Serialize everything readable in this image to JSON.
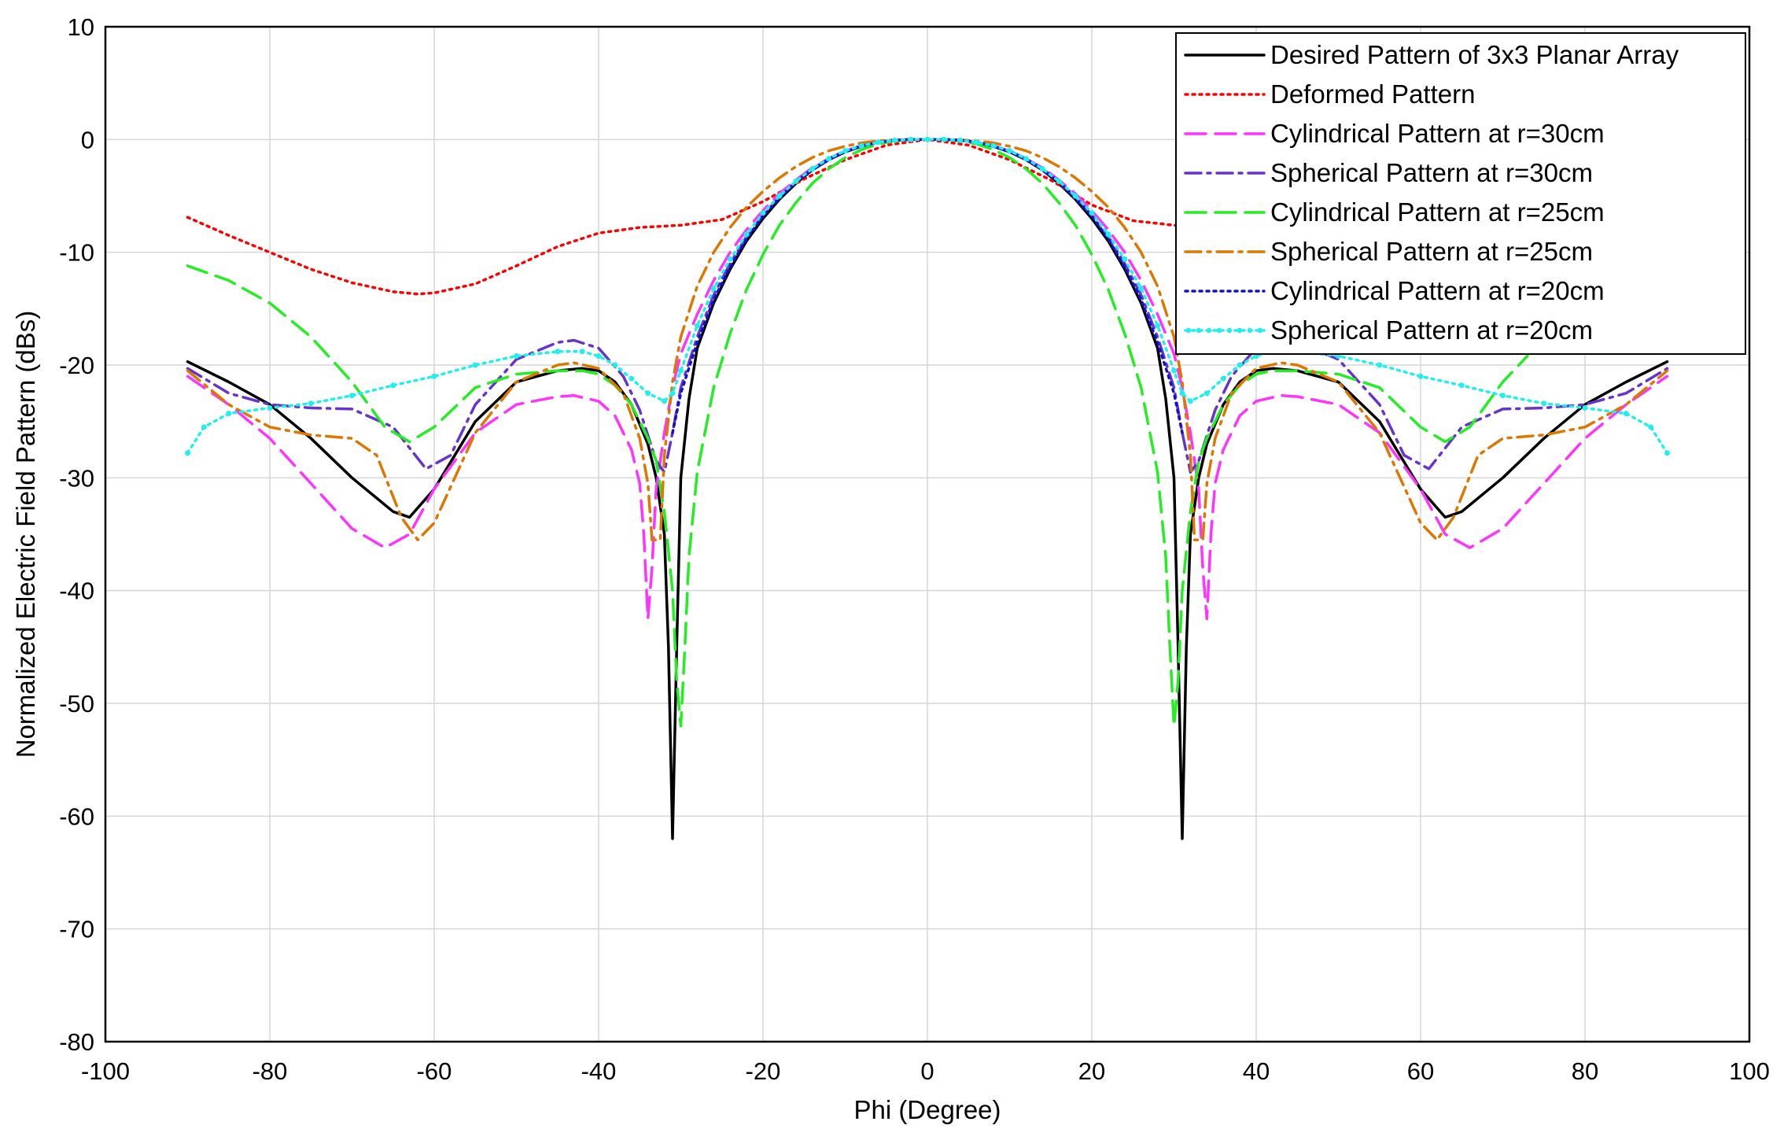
{
  "chart_data": {
    "type": "line",
    "title": "",
    "xlabel": "Phi (Degree)",
    "ylabel": "Normalized Electric Field Pattern (dBs)",
    "xlim": [
      -100,
      100
    ],
    "ylim": [
      -80,
      10
    ],
    "xticks": [
      -100,
      -80,
      -60,
      -40,
      -20,
      0,
      20,
      40,
      60,
      80,
      100
    ],
    "yticks": [
      10,
      0,
      -10,
      -20,
      -30,
      -40,
      -50,
      -60,
      -70,
      -80
    ],
    "grid": true,
    "legend_position": "top-right",
    "series": [
      {
        "name": "Desired Pattern of 3x3 Planar Array",
        "color": "#000000",
        "style": "solid",
        "x": [
          -90,
          -85,
          -80,
          -75,
          -70,
          -65,
          -63,
          -60,
          -55,
          -50,
          -45,
          -42,
          -40,
          -38,
          -36,
          -34,
          -33,
          -32,
          -31.5,
          -31,
          -30.5,
          -30,
          -29,
          -28,
          -26,
          -24,
          -22,
          -20,
          -18,
          -16,
          -14,
          -12,
          -10,
          -8,
          -6,
          -4,
          -2,
          0,
          2,
          4,
          6,
          8,
          10,
          12,
          14,
          16,
          18,
          20,
          22,
          24,
          26,
          28,
          29,
          30,
          30.5,
          31,
          31.5,
          32,
          33,
          34,
          36,
          38,
          40,
          42,
          45,
          50,
          55,
          60,
          63,
          65,
          70,
          75,
          80,
          85,
          90
        ],
        "y": [
          -19.7,
          -21.5,
          -23.5,
          -26.5,
          -30.0,
          -33.0,
          -33.5,
          -31.0,
          -25.0,
          -21.5,
          -20.5,
          -20.3,
          -20.5,
          -21.5,
          -23.5,
          -27.0,
          -30.0,
          -35.0,
          -45.0,
          -62.0,
          -45.0,
          -30.0,
          -23.0,
          -18.5,
          -14.5,
          -11.5,
          -9.0,
          -7.0,
          -5.3,
          -3.9,
          -2.7,
          -1.8,
          -1.1,
          -0.6,
          -0.25,
          -0.07,
          0,
          0,
          0,
          -0.07,
          -0.25,
          -0.6,
          -1.1,
          -1.8,
          -2.7,
          -3.9,
          -5.3,
          -7.0,
          -9.0,
          -11.5,
          -14.5,
          -18.5,
          -23.0,
          -30.0,
          -45.0,
          -62.0,
          -45.0,
          -35.0,
          -30.0,
          -27.0,
          -23.5,
          -21.5,
          -20.5,
          -20.3,
          -20.5,
          -21.5,
          -25.0,
          -31.0,
          -33.5,
          -33.0,
          -30.0,
          -26.5,
          -23.5,
          -21.5,
          -19.7
        ]
      },
      {
        "name": "Deformed Pattern",
        "color": "#ff0000",
        "style": "dotted",
        "x": [
          -90,
          -85,
          -80,
          -75,
          -70,
          -65,
          -62,
          -60,
          -55,
          -50,
          -45,
          -40,
          -35,
          -30,
          -25,
          -20,
          -15,
          -10,
          -5,
          0,
          5,
          10,
          15,
          20,
          25,
          30,
          35
        ],
        "y": [
          -6.9,
          -8.5,
          -10.0,
          -11.5,
          -12.7,
          -13.5,
          -13.7,
          -13.6,
          -12.8,
          -11.2,
          -9.5,
          -8.3,
          -7.8,
          -7.6,
          -7.1,
          -5.5,
          -3.5,
          -1.8,
          -0.5,
          0,
          -0.5,
          -1.8,
          -3.6,
          -5.8,
          -7.2,
          -7.6,
          -7.8
        ]
      },
      {
        "name": "Cylindrical Pattern at r=30cm",
        "color": "#ff33ff",
        "style": "dashed",
        "x": [
          -90,
          -85,
          -80,
          -75,
          -70,
          -66,
          -63,
          -60,
          -55,
          -50,
          -45,
          -43,
          -40,
          -38,
          -36,
          -35,
          -34.5,
          -34,
          -33.5,
          -33,
          -32,
          -31,
          -30,
          -28,
          -26,
          -24,
          -22,
          -20,
          -18,
          -16,
          -14,
          -12,
          -10,
          -8,
          -6,
          -4,
          -2,
          0,
          2,
          4,
          6,
          8,
          10,
          12,
          14,
          16,
          18,
          20,
          22,
          24,
          26,
          28,
          30,
          31,
          32,
          33,
          33.5,
          34,
          34.5,
          35,
          36,
          38,
          40,
          43,
          45,
          50,
          55,
          60,
          63,
          66,
          70,
          75,
          80,
          85,
          90
        ],
        "y": [
          -21.0,
          -23.5,
          -26.5,
          -30.5,
          -34.5,
          -36.2,
          -35.0,
          -31.0,
          -26.0,
          -23.5,
          -22.8,
          -22.7,
          -23.2,
          -24.5,
          -27.5,
          -30.5,
          -35.0,
          -42.5,
          -38.0,
          -31.0,
          -26.0,
          -22.0,
          -19.0,
          -15.5,
          -12.5,
          -10.0,
          -8.0,
          -6.3,
          -4.8,
          -3.6,
          -2.5,
          -1.7,
          -1.0,
          -0.55,
          -0.25,
          -0.07,
          0,
          0,
          0,
          -0.07,
          -0.25,
          -0.55,
          -1.0,
          -1.7,
          -2.5,
          -3.6,
          -4.8,
          -6.3,
          -8.0,
          -10.0,
          -12.5,
          -15.5,
          -19.0,
          -22.0,
          -26.0,
          -31.0,
          -38.0,
          -42.5,
          -35.0,
          -30.5,
          -27.5,
          -24.5,
          -23.2,
          -22.7,
          -22.8,
          -23.5,
          -26.0,
          -31.0,
          -35.0,
          -36.2,
          -34.5,
          -30.5,
          -26.5,
          -23.5,
          -21.0
        ]
      },
      {
        "name": "Spherical Pattern at r=30cm",
        "color": "#6633cc",
        "style": "dashdot",
        "x": [
          -90,
          -85,
          -80,
          -75,
          -70,
          -65,
          -61,
          -58,
          -55,
          -50,
          -45,
          -43,
          -40,
          -37,
          -35,
          -33,
          -32,
          -31,
          -30,
          -28,
          -26,
          -24,
          -22,
          -20,
          -18,
          -16,
          -14,
          -12,
          -10,
          -8,
          -6,
          -4,
          -2,
          0,
          2,
          4,
          6,
          8,
          10,
          12,
          14,
          16,
          18,
          20,
          22,
          24,
          26,
          28,
          30,
          31,
          32,
          33,
          35,
          37,
          40,
          43,
          45,
          50,
          55,
          58,
          61,
          65,
          70,
          75,
          80,
          85,
          90
        ],
        "y": [
          -20.3,
          -22.5,
          -23.5,
          -23.8,
          -23.9,
          -25.5,
          -29.2,
          -28.0,
          -23.5,
          -19.5,
          -18.0,
          -17.8,
          -18.5,
          -21.0,
          -24.0,
          -28.5,
          -29.5,
          -26.0,
          -22.0,
          -17.5,
          -13.8,
          -11.0,
          -8.6,
          -6.7,
          -5.1,
          -3.7,
          -2.6,
          -1.7,
          -1.0,
          -0.55,
          -0.25,
          -0.07,
          0,
          0,
          0,
          -0.07,
          -0.25,
          -0.55,
          -1.0,
          -1.7,
          -2.6,
          -3.7,
          -5.1,
          -6.7,
          -8.6,
          -11.0,
          -13.8,
          -17.5,
          -22.0,
          -26.0,
          -29.5,
          -28.5,
          -24.0,
          -21.0,
          -18.5,
          -17.8,
          -18.0,
          -19.5,
          -23.5,
          -28.0,
          -29.2,
          -25.5,
          -23.9,
          -23.8,
          -23.5,
          -22.5,
          -20.3
        ]
      },
      {
        "name": "Cylindrical Pattern at r=25cm",
        "color": "#22ee22",
        "style": "dashed",
        "x": [
          -90,
          -85,
          -80,
          -75,
          -70,
          -66,
          -63,
          -60,
          -55,
          -50,
          -45,
          -42,
          -40,
          -38,
          -36,
          -34,
          -33,
          -32,
          -31,
          -30.5,
          -30,
          -29.5,
          -29,
          -28,
          -26,
          -24,
          -22,
          -20,
          -18,
          -16,
          -14,
          -12,
          -10,
          -8,
          -6,
          -4,
          -2,
          0,
          2,
          4,
          6,
          8,
          10,
          12,
          14,
          16,
          18,
          20,
          22,
          24,
          26,
          28,
          29,
          29.5,
          30,
          30.5,
          31,
          32,
          33,
          34,
          36,
          38,
          40,
          42,
          45,
          50,
          55,
          60,
          63,
          66,
          70,
          73
        ],
        "y": [
          -11.2,
          -12.5,
          -14.5,
          -17.5,
          -21.5,
          -25.5,
          -26.8,
          -25.5,
          -22.0,
          -20.8,
          -20.5,
          -20.5,
          -20.8,
          -21.8,
          -23.5,
          -26.5,
          -28.5,
          -33.0,
          -40.0,
          -48.0,
          -52.0,
          -45.0,
          -37.0,
          -29.5,
          -22.0,
          -17.2,
          -13.3,
          -10.2,
          -7.6,
          -5.6,
          -3.9,
          -2.6,
          -1.6,
          -0.9,
          -0.4,
          -0.12,
          0,
          0,
          0,
          -0.12,
          -0.4,
          -0.9,
          -1.6,
          -2.6,
          -3.9,
          -5.6,
          -7.6,
          -10.2,
          -13.3,
          -17.2,
          -22.0,
          -29.5,
          -37.0,
          -45.0,
          -52.0,
          -48.0,
          -40.0,
          -33.0,
          -28.5,
          -26.5,
          -23.5,
          -21.8,
          -20.8,
          -20.5,
          -20.5,
          -20.8,
          -22.0,
          -25.5,
          -26.8,
          -25.5,
          -21.5,
          -19.2
        ]
      },
      {
        "name": "Spherical Pattern at r=25cm",
        "color": "#dd7700",
        "style": "dashdot",
        "x": [
          -90,
          -85,
          -80,
          -75,
          -70,
          -67,
          -64,
          -62,
          -60,
          -55,
          -50,
          -45,
          -43,
          -40,
          -37,
          -35,
          -34,
          -33.5,
          -33,
          -32.5,
          -32,
          -31,
          -30,
          -28,
          -26,
          -24,
          -22,
          -20,
          -18,
          -16,
          -14,
          -12,
          -10,
          -8,
          -6,
          -4,
          -2,
          0,
          2,
          4,
          6,
          8,
          10,
          12,
          14,
          16,
          18,
          20,
          22,
          24,
          26,
          28,
          30,
          31,
          32,
          32.5,
          33,
          33.5,
          34,
          35,
          37,
          40,
          43,
          45,
          50,
          55,
          60,
          62,
          64,
          67,
          70,
          75,
          80,
          85,
          90
        ],
        "y": [
          -20.5,
          -23.5,
          -25.5,
          -26.2,
          -26.5,
          -28.0,
          -33.5,
          -35.5,
          -34.0,
          -26.0,
          -21.5,
          -20.0,
          -19.8,
          -20.3,
          -22.5,
          -26.5,
          -30.5,
          -35.5,
          -35.5,
          -35.5,
          -28.0,
          -21.5,
          -17.5,
          -13.0,
          -10.0,
          -7.8,
          -6.0,
          -4.6,
          -3.4,
          -2.4,
          -1.6,
          -1.0,
          -0.6,
          -0.3,
          -0.12,
          -0.03,
          0,
          0,
          0,
          -0.03,
          -0.12,
          -0.3,
          -0.6,
          -1.0,
          -1.6,
          -2.4,
          -3.4,
          -4.6,
          -6.0,
          -7.8,
          -10.0,
          -13.0,
          -17.5,
          -21.5,
          -28.0,
          -35.5,
          -35.5,
          -35.5,
          -30.5,
          -26.5,
          -22.5,
          -20.3,
          -19.8,
          -20.0,
          -21.5,
          -26.0,
          -34.0,
          -35.5,
          -33.5,
          -28.0,
          -26.5,
          -26.2,
          -25.5,
          -23.5,
          -20.5
        ]
      },
      {
        "name": "Cylindrical Pattern at r=20cm",
        "color": "#1111cc",
        "style": "dotted",
        "x": [
          -31,
          -30,
          -28,
          -26,
          -24,
          -22,
          -20,
          -18,
          -16,
          -14,
          -12,
          -10,
          -8,
          -6,
          -4,
          -2,
          0,
          2,
          4,
          6,
          8,
          10,
          12,
          14,
          16,
          18,
          20,
          22,
          24,
          26,
          28,
          30,
          31
        ],
        "y": [
          -26.0,
          -22.5,
          -18.0,
          -14.2,
          -11.3,
          -8.8,
          -6.8,
          -5.2,
          -3.8,
          -2.7,
          -1.8,
          -1.1,
          -0.6,
          -0.25,
          -0.07,
          0,
          0,
          0,
          -0.07,
          -0.25,
          -0.6,
          -1.1,
          -1.8,
          -2.7,
          -3.8,
          -5.2,
          -6.8,
          -8.8,
          -11.3,
          -14.2,
          -18.0,
          -22.5,
          -26.0
        ]
      },
      {
        "name": "Spherical Pattern at r=20cm",
        "color": "#22eeee",
        "style": "dotted",
        "x": [
          -90,
          -88,
          -85,
          -80,
          -75,
          -70,
          -65,
          -60,
          -55,
          -50,
          -45,
          -42,
          -40,
          -38,
          -36,
          -34,
          -32,
          -31,
          -30,
          -28,
          -26,
          -24,
          -22,
          -20,
          -18,
          -16,
          -14,
          -12,
          -10,
          -8,
          -6,
          -4,
          -2,
          0,
          2,
          4,
          6,
          8,
          10,
          12,
          14,
          16,
          18,
          20,
          22,
          24,
          26,
          28,
          30,
          31,
          32,
          34,
          36,
          38,
          40,
          42,
          45,
          50,
          55,
          60,
          65,
          70,
          75,
          80,
          85,
          88,
          90
        ],
        "y": [
          -27.8,
          -25.5,
          -24.3,
          -23.8,
          -23.4,
          -22.7,
          -21.8,
          -21.0,
          -20.0,
          -19.2,
          -18.8,
          -18.8,
          -19.2,
          -20.0,
          -21.2,
          -22.5,
          -23.2,
          -22.5,
          -20.5,
          -16.5,
          -13.2,
          -10.6,
          -8.4,
          -6.5,
          -5.0,
          -3.7,
          -2.6,
          -1.7,
          -1.0,
          -0.55,
          -0.25,
          -0.07,
          0,
          0,
          0,
          -0.07,
          -0.25,
          -0.55,
          -1.0,
          -1.7,
          -2.6,
          -3.7,
          -5.0,
          -6.5,
          -8.4,
          -10.6,
          -13.2,
          -16.5,
          -20.5,
          -22.5,
          -23.2,
          -22.5,
          -21.2,
          -20.0,
          -19.2,
          -18.8,
          -18.8,
          -19.2,
          -20.0,
          -21.0,
          -21.8,
          -22.7,
          -23.4,
          -23.8,
          -24.3,
          -25.5,
          -27.8
        ]
      }
    ]
  }
}
